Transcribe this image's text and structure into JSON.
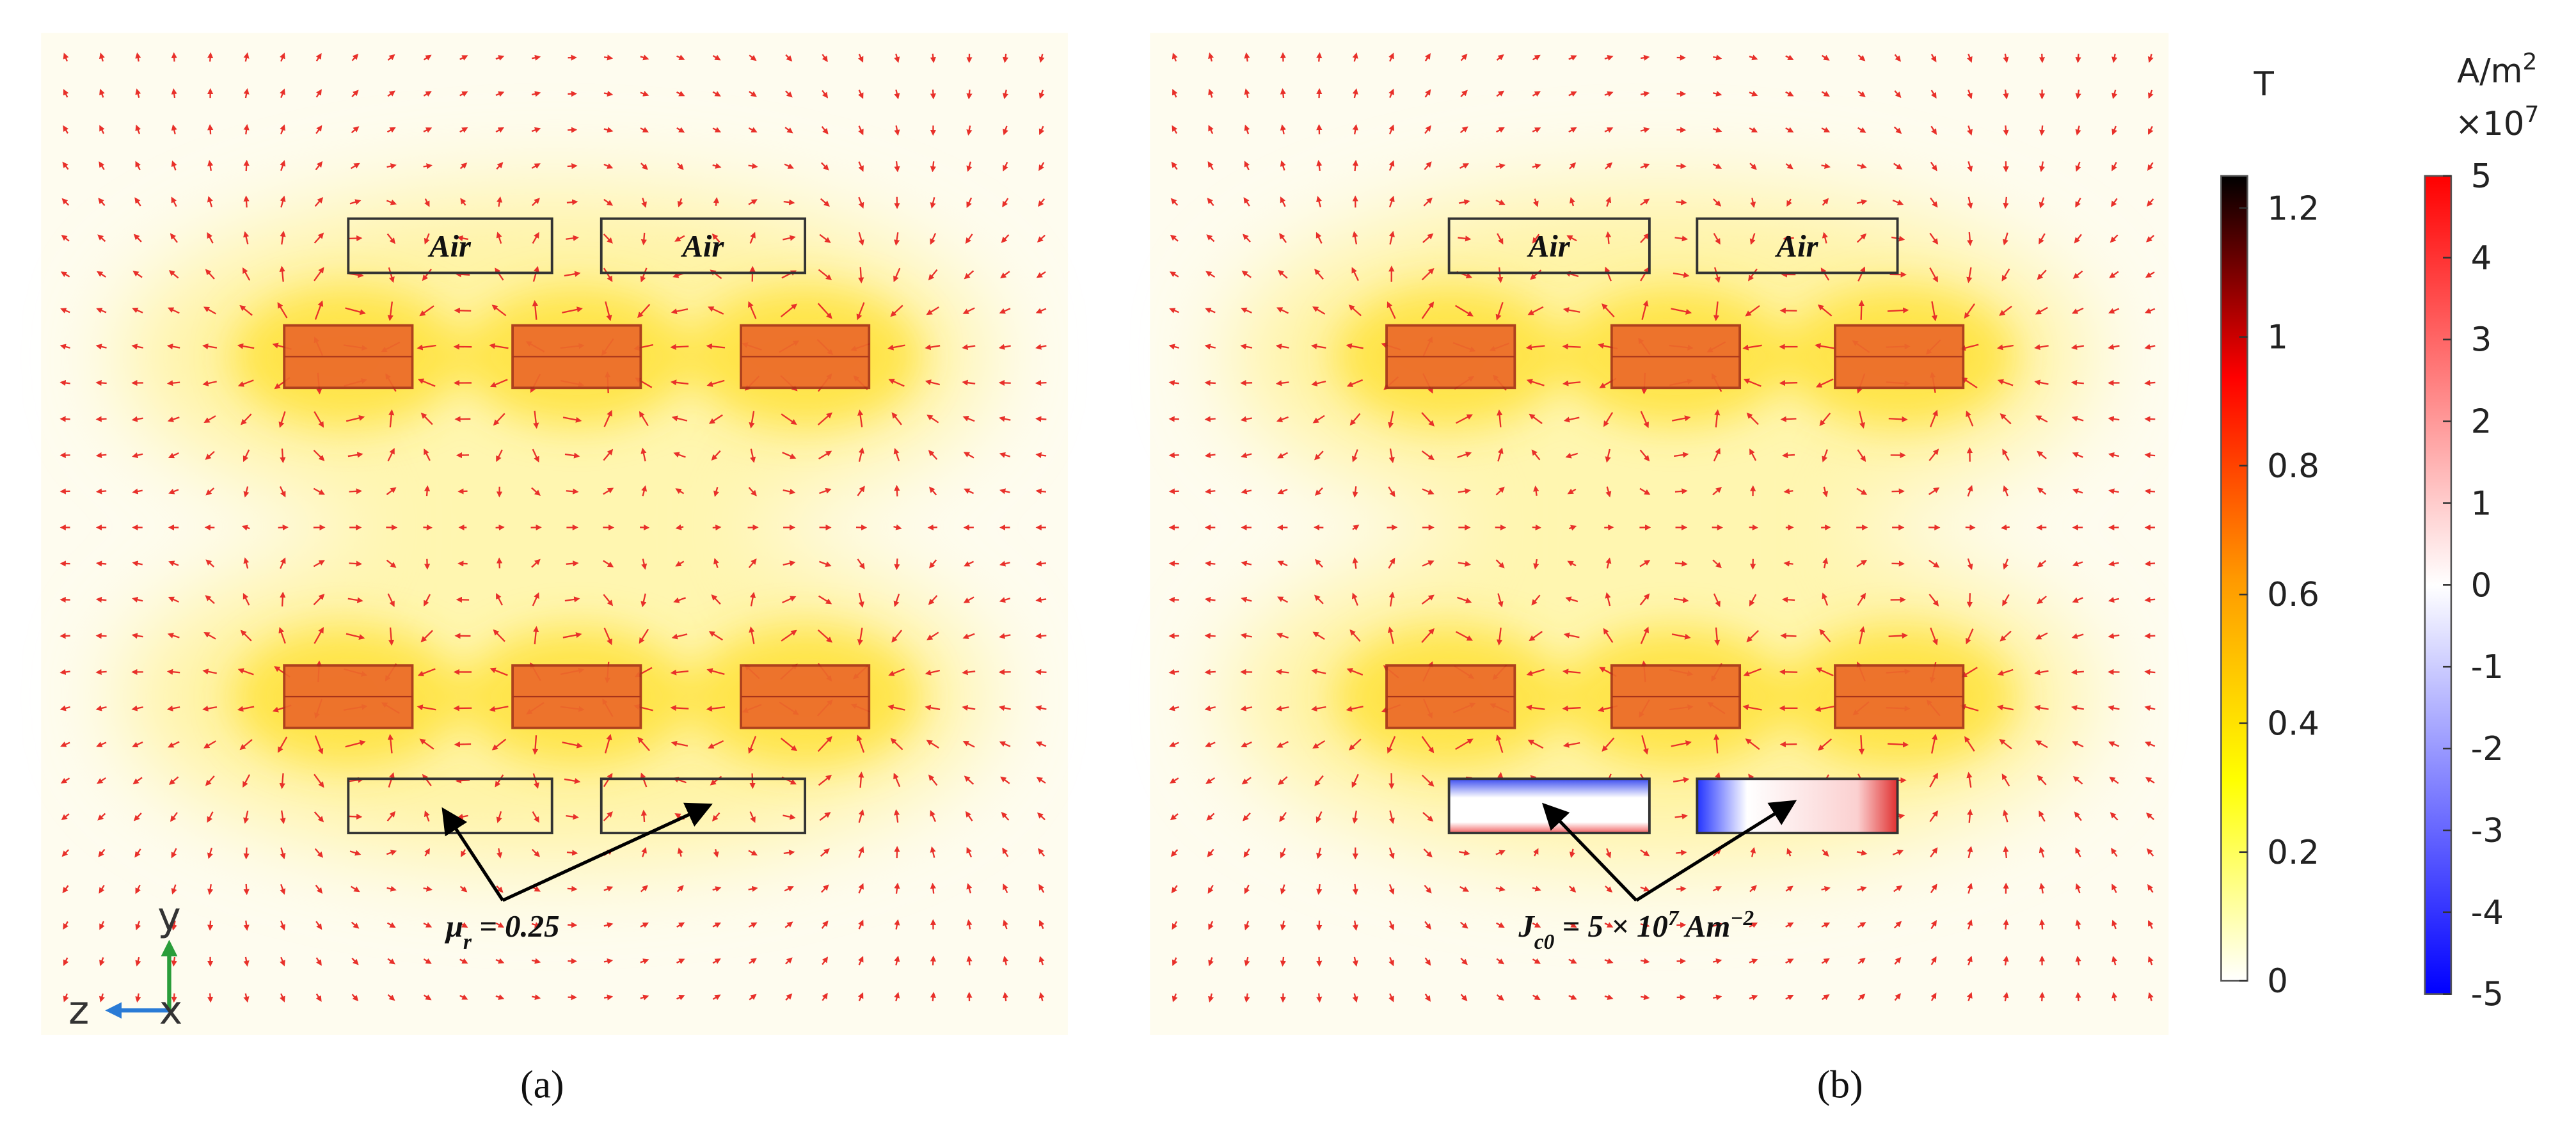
{
  "panels": [
    {
      "label": "(a)",
      "air_labels": [
        "Air",
        "Air"
      ],
      "annotation": {
        "symbol": "μ",
        "subscript": "r",
        "text": " = 0.25"
      }
    },
    {
      "label": "(b)",
      "air_labels": [
        "Air",
        "Air"
      ],
      "annotation": {
        "symbol": "J",
        "subscript": "c0",
        "text": " = 5 × 10",
        "sup": "7",
        "unit": " Am",
        "unit_sup": "−2"
      }
    }
  ],
  "axes_triad": {
    "y": "y",
    "z": "z",
    "x": "x"
  },
  "colorbars": [
    {
      "unit": "T",
      "range": [
        0,
        1.25
      ],
      "ticks": [
        0,
        0.2,
        0.4,
        0.6,
        0.8,
        1,
        1.2
      ],
      "colors": [
        "#ffffff",
        "#ffff00",
        "#ff9900",
        "#ff0000",
        "#000000"
      ]
    },
    {
      "unit": "A/m",
      "unit_sup": "2",
      "multiplier": "×10",
      "multiplier_sup": "7",
      "range": [
        -5,
        5
      ],
      "ticks": [
        -5,
        -4,
        -3,
        -2,
        -1,
        0,
        1,
        2,
        3,
        4,
        5
      ],
      "colors": [
        "#0000ff",
        "#ffffff",
        "#ff0000"
      ]
    }
  ]
}
